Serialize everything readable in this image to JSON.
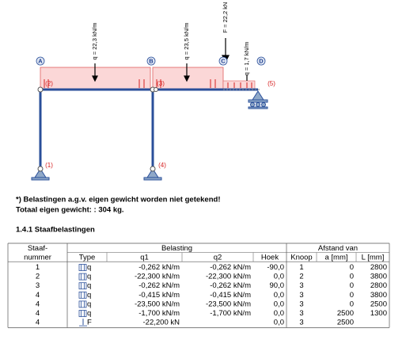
{
  "diagram": {
    "nodes": [
      "A",
      "B",
      "C",
      "D"
    ],
    "loads": [
      "q = 22,3 kN/m",
      "q = 23,5 kN/m",
      "F = 22,2 kN",
      "q = 1,7 kN/m"
    ],
    "members": [
      "(1)",
      "(2)",
      "(3)",
      "(4)",
      "(5)"
    ]
  },
  "notes": [
    "*) Belastingen a.g.v. eigen gewicht worden niet getekend!",
    "Totaal eigen gewicht:  : 304 kg."
  ],
  "section_title": "1.4.1 Staafbelastingen",
  "table": {
    "group_headers": [
      "Staaf-",
      "Belasting",
      "Afstand van"
    ],
    "columns": [
      "nummer",
      "Type",
      "q1",
      "q2",
      "Hoek",
      "Knoop",
      "a [mm]",
      "L [mm]"
    ],
    "rows": [
      [
        "1",
        "q",
        "-0,262 kN/m",
        "-0,262 kN/m",
        "-90,0",
        "1",
        "0",
        "2800"
      ],
      [
        "2",
        "q",
        "-22,300 kN/m",
        "-22,300 kN/m",
        "0,0",
        "2",
        "0",
        "3800"
      ],
      [
        "3",
        "q",
        "-0,262 kN/m",
        "-0,262 kN/m",
        "90,0",
        "3",
        "0",
        "2800"
      ],
      [
        "4",
        "q",
        "-0,415 kN/m",
        "-0,415 kN/m",
        "0,0",
        "3",
        "0",
        "3800"
      ],
      [
        "4",
        "q",
        "-23,500 kN/m",
        "-23,500 kN/m",
        "0,0",
        "3",
        "0",
        "2500"
      ],
      [
        "4",
        "q",
        "-1,700 kN/m",
        "-1,700 kN/m",
        "0,0",
        "3",
        "2500",
        "1300"
      ],
      [
        "4",
        "F",
        "-22,200 kN",
        null,
        "0,0",
        "3",
        "2500",
        null
      ]
    ]
  }
}
